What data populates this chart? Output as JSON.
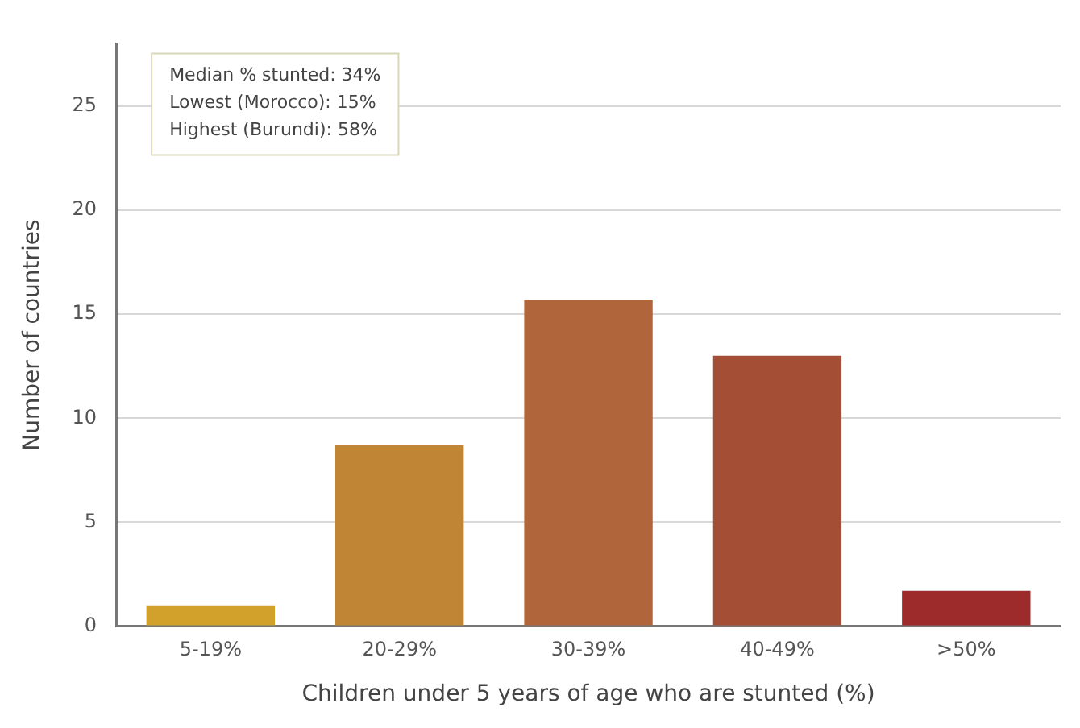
{
  "chart_data": {
    "type": "bar",
    "xlabel": "Children under 5 years of age who are stunted (%)",
    "ylabel": "Number of countries",
    "categories": [
      "5-19%",
      "20-29%",
      "30-39%",
      "40-49%",
      ">50%"
    ],
    "values": [
      1,
      8.7,
      15.7,
      13,
      1.7
    ],
    "colors": [
      "#d2a12c",
      "#c08535",
      "#b0663a",
      "#a44f35",
      "#9d2b2c"
    ],
    "ylim": [
      0,
      28
    ],
    "yticks": [
      0,
      5,
      10,
      15,
      20,
      25
    ],
    "grid": "y",
    "annotations": [
      "Median % stunted: 34%",
      "Lowest (Morocco): 15%",
      "Highest (Burundi): 58%"
    ]
  }
}
